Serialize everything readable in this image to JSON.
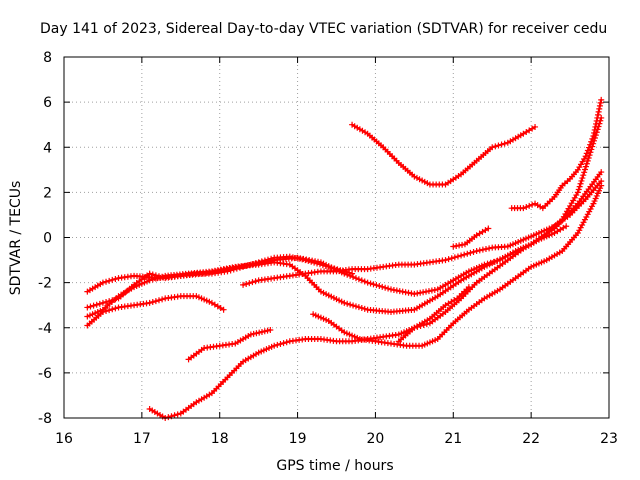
{
  "chart_data": {
    "type": "scatter",
    "title": "Day 141 of 2023, Sidereal Day-to-day VTEC variation (SDTVAR) for receiver cedu",
    "xlabel": "GPS time / hours",
    "ylabel": "SDTVAR / TECUs",
    "xlim": [
      16,
      23
    ],
    "ylim": [
      -8,
      8
    ],
    "xticks": [
      "16",
      "17",
      "18",
      "19",
      "20",
      "21",
      "22",
      "23"
    ],
    "yticks": [
      "-8",
      "-6",
      "-4",
      "-2",
      "0",
      "2",
      "4",
      "6",
      "8"
    ],
    "grid": true,
    "legend": "none",
    "marker": "plus",
    "color": "#ff0000",
    "series": [
      {
        "x": [
          19.7,
          19.9,
          20.1,
          20.3,
          20.5,
          20.7,
          20.9,
          21.1,
          21.3,
          21.5,
          21.7,
          21.9,
          22.05
        ],
        "y": [
          5.0,
          4.6,
          4.0,
          3.3,
          2.7,
          2.35,
          2.35,
          2.8,
          3.4,
          4.0,
          4.2,
          4.6,
          4.9
        ]
      },
      {
        "x": [
          21.75,
          21.9,
          22.05,
          22.15,
          22.3,
          22.4,
          22.5,
          22.6,
          22.7,
          22.8,
          22.9
        ],
        "y": [
          1.3,
          1.3,
          1.5,
          1.3,
          1.8,
          2.3,
          2.6,
          3.0,
          3.6,
          4.5,
          6.1
        ]
      },
      {
        "x": [
          16.3,
          16.5,
          16.7,
          16.9,
          17.2,
          17.5,
          17.8,
          18.1,
          18.4,
          18.7,
          19.0,
          19.3,
          19.6,
          19.9,
          20.2,
          20.5,
          20.8,
          21.0,
          21.2,
          21.4,
          21.6,
          21.8,
          22.0,
          22.2,
          22.4,
          22.6,
          22.9
        ],
        "y": [
          -2.4,
          -2.0,
          -1.8,
          -1.7,
          -1.8,
          -1.7,
          -1.6,
          -1.4,
          -1.2,
          -1.0,
          -0.9,
          -1.1,
          -1.6,
          -2.0,
          -2.3,
          -2.5,
          -2.3,
          -1.9,
          -1.5,
          -1.2,
          -1.0,
          -0.6,
          -0.3,
          0.2,
          0.8,
          2.0,
          5.3
        ]
      },
      {
        "x": [
          16.3,
          16.5,
          16.7,
          16.9,
          17.1,
          17.3,
          17.6,
          17.9,
          18.2,
          18.5,
          18.7,
          18.9,
          19.1,
          19.3,
          19.6,
          19.9,
          20.2,
          20.5,
          20.8,
          21.1,
          21.4,
          21.7,
          22.0,
          22.3,
          22.6,
          22.9
        ],
        "y": [
          -3.5,
          -3.2,
          -2.6,
          -2.2,
          -1.9,
          -1.7,
          -1.6,
          -1.5,
          -1.3,
          -1.2,
          -1.1,
          -1.2,
          -1.7,
          -2.4,
          -2.9,
          -3.2,
          -3.3,
          -3.2,
          -2.6,
          -1.9,
          -1.3,
          -0.8,
          -0.3,
          0.4,
          1.5,
          2.9
        ]
      },
      {
        "x": [
          16.3,
          16.5,
          16.7,
          16.9,
          17.1,
          17.3,
          17.5,
          17.7,
          17.9,
          18.1,
          18.3,
          18.5,
          18.7,
          18.9,
          19.1,
          19.4,
          19.7
        ],
        "y": [
          -3.1,
          -2.9,
          -2.7,
          -2.1,
          -1.6,
          -1.8,
          -1.7,
          -1.6,
          -1.6,
          -1.5,
          -1.3,
          -1.1,
          -0.9,
          -0.85,
          -1.0,
          -1.3,
          -1.6
        ]
      },
      {
        "x": [
          16.3,
          16.5,
          16.7,
          16.9,
          17.1,
          17.3,
          17.5,
          17.7,
          17.9,
          18.05
        ],
        "y": [
          -3.9,
          -3.3,
          -3.1,
          -3.0,
          -2.9,
          -2.7,
          -2.6,
          -2.6,
          -2.9,
          -3.2
        ]
      },
      {
        "x": [
          18.3,
          18.5,
          18.7,
          18.9,
          19.1,
          19.3,
          19.5,
          19.7,
          19.9,
          20.1,
          20.3,
          20.5,
          20.7,
          20.9,
          21.1,
          21.3,
          21.5,
          21.7,
          21.9,
          22.1,
          22.3,
          22.5,
          22.7,
          22.9
        ],
        "y": [
          -2.1,
          -1.9,
          -1.8,
          -1.7,
          -1.6,
          -1.5,
          -1.5,
          -1.4,
          -1.4,
          -1.3,
          -1.2,
          -1.2,
          -1.1,
          -1.0,
          -0.8,
          -0.6,
          -0.45,
          -0.4,
          -0.1,
          0.2,
          0.5,
          1.0,
          1.7,
          2.5
        ]
      },
      {
        "x": [
          19.2,
          19.4,
          19.6,
          19.8,
          20.0,
          20.2,
          20.4,
          20.6,
          20.8,
          21.0,
          21.2,
          21.4,
          21.6,
          21.8,
          22.0,
          22.2,
          22.4,
          22.6,
          22.8,
          22.9
        ],
        "y": [
          -3.4,
          -3.7,
          -4.2,
          -4.5,
          -4.6,
          -4.7,
          -4.8,
          -4.8,
          -4.5,
          -3.8,
          -3.2,
          -2.7,
          -2.3,
          -1.8,
          -1.3,
          -1.0,
          -0.6,
          0.2,
          1.5,
          2.3
        ]
      },
      {
        "x": [
          17.6,
          17.8,
          18.0,
          18.2,
          18.4,
          18.65
        ],
        "y": [
          -5.4,
          -4.9,
          -4.8,
          -4.7,
          -4.3,
          -4.1
        ]
      },
      {
        "x": [
          17.1,
          17.3,
          17.5,
          17.7,
          17.9,
          18.1,
          18.3,
          18.5,
          18.7,
          18.9,
          19.1,
          19.3,
          19.5,
          19.7,
          19.9,
          20.1,
          20.3,
          20.5,
          20.7,
          20.9,
          21.1,
          21.3,
          21.5,
          21.7,
          21.9,
          22.1,
          22.3,
          22.45
        ],
        "y": [
          -7.6,
          -8.0,
          -7.8,
          -7.3,
          -6.9,
          -6.2,
          -5.5,
          -5.1,
          -4.8,
          -4.6,
          -4.5,
          -4.5,
          -4.6,
          -4.6,
          -4.5,
          -4.4,
          -4.3,
          -4.0,
          -3.8,
          -3.3,
          -2.7,
          -2.0,
          -1.5,
          -1.0,
          -0.5,
          -0.1,
          0.2,
          0.5
        ]
      },
      {
        "x": [
          20.3,
          20.5,
          20.7,
          20.9,
          21.05,
          21.2
        ],
        "y": [
          -4.6,
          -4.0,
          -3.6,
          -3.0,
          -2.7,
          -2.2
        ]
      },
      {
        "x": [
          21.0,
          21.15,
          21.3,
          21.45
        ],
        "y": [
          -0.4,
          -0.3,
          0.1,
          0.4
        ]
      }
    ]
  }
}
